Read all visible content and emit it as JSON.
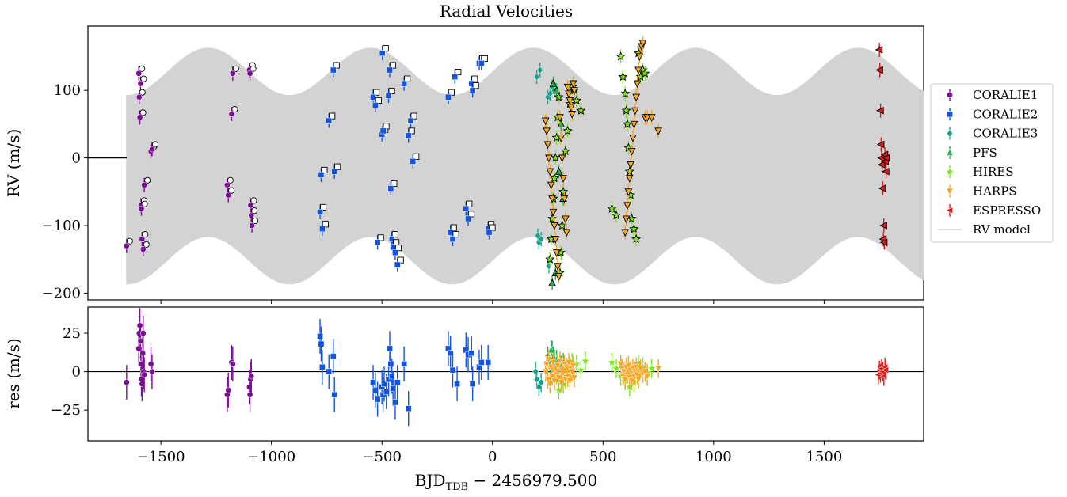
{
  "chart_data": [
    {
      "type": "scatter",
      "panel": "top",
      "title": "Radial Velocities",
      "ylabel": "RV (m/s)",
      "xlim": [
        -1830,
        1950
      ],
      "ylim": [
        -210,
        195
      ],
      "yticks": [
        100,
        0,
        -100,
        -200
      ],
      "ytick_labels": [
        "100",
        "0",
        "−100",
        "−200"
      ],
      "model": {
        "name": "RV model",
        "color": "#d3d3d3",
        "x_start": -1655,
        "x_end": 1950,
        "offset": -12,
        "slow_amplitude": 35,
        "slow_period": 735,
        "fast_amplitude": 140
      },
      "series": [
        {
          "name": "CORALIE1",
          "color": "#7b0c95",
          "marker": "circle",
          "x": [
            -1655,
            -1600,
            -1598,
            -1595,
            -1590,
            -1585,
            -1580,
            -1575,
            -1592,
            -1588,
            -1545,
            -1540,
            -1200,
            -1195,
            -1180,
            -1175,
            -1100,
            -1097,
            -1094,
            -1091,
            -1088
          ],
          "y": [
            -130,
            125,
            90,
            60,
            -70,
            -120,
            -135,
            -40,
            110,
            -75,
            10,
            13,
            -40,
            -55,
            65,
            125,
            130,
            125,
            -70,
            -85,
            -100
          ]
        },
        {
          "name": "CORALIE2",
          "color": "#1154e0",
          "marker": "square",
          "x": [
            -780,
            -775,
            -770,
            -740,
            -720,
            -715,
            -540,
            -530,
            -520,
            -500,
            -498,
            -495,
            -470,
            -465,
            -460,
            -455,
            -450,
            -440,
            -430,
            -400,
            -380,
            -370,
            -360,
            -200,
            -190,
            -180,
            -170,
            -120,
            -110,
            -95,
            -90,
            -60,
            -50,
            -20,
            -15
          ],
          "y": [
            -80,
            -25,
            -105,
            55,
            130,
            -20,
            90,
            78,
            -125,
            35,
            155,
            40,
            92,
            130,
            -45,
            -120,
            -132,
            -140,
            -158,
            110,
            33,
            55,
            -5,
            90,
            -110,
            -120,
            120,
            -75,
            -90,
            110,
            100,
            140,
            140,
            -105,
            -110
          ]
        },
        {
          "name": "CORALIE3",
          "color": "#16a08c",
          "marker": "diamond",
          "x": [
            200,
            205,
            210,
            215,
            220,
            250,
            255,
            260,
            270,
            280
          ],
          "y": [
            120,
            -115,
            -125,
            130,
            -120,
            90,
            -160,
            95,
            105,
            100
          ]
        },
        {
          "name": "PFS",
          "color": "#22b04a",
          "marker": "triangle-up",
          "x": [
            270,
            275,
            285,
            290,
            300,
            310,
            320
          ],
          "y": [
            -185,
            110,
            -170,
            100,
            -20,
            50,
            -60
          ]
        },
        {
          "name": "HIRES",
          "color": "#7fe51c",
          "marker": "star",
          "x": [
            260,
            265,
            270,
            275,
            280,
            285,
            290,
            295,
            300,
            305,
            310,
            315,
            320,
            330,
            340,
            350,
            360,
            370,
            380,
            400,
            540,
            560,
            580,
            590,
            600,
            605,
            610,
            615,
            620,
            625,
            630,
            640,
            650,
            660,
            670,
            680,
            690
          ],
          "y": [
            -150,
            -120,
            -90,
            -60,
            -30,
            0,
            30,
            60,
            90,
            -170,
            -140,
            -100,
            -50,
            10,
            40,
            80,
            105,
            100,
            85,
            70,
            -75,
            -85,
            150,
            120,
            95,
            70,
            50,
            15,
            -20,
            -55,
            -90,
            -105,
            -120,
            155,
            120,
            130,
            125
          ]
        },
        {
          "name": "HARPS",
          "color": "#f5a623",
          "marker": "triangle-down",
          "x": [
            240,
            245,
            250,
            255,
            260,
            265,
            270,
            275,
            280,
            285,
            290,
            295,
            300,
            305,
            310,
            315,
            320,
            325,
            330,
            335,
            340,
            345,
            350,
            355,
            360,
            365,
            370,
            600,
            605,
            610,
            615,
            620,
            625,
            630,
            635,
            640,
            645,
            650,
            655,
            660,
            665,
            670,
            675,
            680,
            690,
            700,
            720,
            750
          ],
          "y": [
            55,
            40,
            20,
            0,
            -20,
            -40,
            -60,
            -80,
            -100,
            -120,
            -140,
            -160,
            -175,
            60,
            30,
            0,
            -30,
            -60,
            -90,
            -110,
            105,
            95,
            85,
            75,
            65,
            110,
            100,
            -110,
            -90,
            -70,
            -50,
            -30,
            -10,
            10,
            30,
            50,
            70,
            90,
            110,
            130,
            150,
            160,
            165,
            170,
            60,
            60,
            60,
            40
          ]
        },
        {
          "name": "ESPRESSO",
          "color": "#d62020",
          "marker": "triangle-left",
          "x": [
            1750,
            1752,
            1755,
            1758,
            1760,
            1762,
            1765,
            1768,
            1770,
            1772,
            1775,
            1778,
            1780,
            1782
          ],
          "y": [
            160,
            130,
            70,
            20,
            0,
            -10,
            -45,
            -120,
            -100,
            -125,
            5,
            -5,
            -20,
            0
          ]
        }
      ]
    },
    {
      "type": "scatter",
      "panel": "bottom",
      "ylabel": "res (m/s)",
      "xlabel_main": "BJD",
      "xlabel_sub": "TDB",
      "xlabel_rest": " − 2456979.500",
      "xlim": [
        -1830,
        1950
      ],
      "ylim": [
        -45,
        42
      ],
      "yticks": [
        25,
        0,
        -25
      ],
      "ytick_labels": [
        "25",
        "0",
        "−25"
      ],
      "xticks": [
        -1500,
        -1000,
        -500,
        0,
        500,
        1000,
        1500
      ],
      "xtick_labels": [
        "−1500",
        "−1000",
        "−500",
        "0",
        "500",
        "1000",
        "1500"
      ],
      "series": [
        {
          "name": "CORALIE1",
          "color": "#7b0c95",
          "marker": "circle",
          "x": [
            -1655,
            -1600,
            -1598,
            -1595,
            -1592,
            -1590,
            -1588,
            -1585,
            -1582,
            -1580,
            -1578,
            -1575,
            -1545,
            -1540,
            -1200,
            -1195,
            -1180,
            -1175,
            -1100,
            -1097,
            -1094,
            -1091
          ],
          "y": [
            -7,
            15,
            25,
            30,
            20,
            5,
            -5,
            -8,
            12,
            25,
            0,
            -2,
            5,
            0,
            -15,
            -12,
            6,
            5,
            -10,
            -15,
            -5,
            -3
          ]
        },
        {
          "name": "CORALIE2",
          "color": "#1154e0",
          "marker": "square",
          "x": [
            -780,
            -775,
            -770,
            -740,
            -720,
            -715,
            -540,
            -530,
            -520,
            -500,
            -495,
            -490,
            -480,
            -470,
            -465,
            -460,
            -455,
            -450,
            -440,
            -430,
            -400,
            -380,
            -200,
            -190,
            -180,
            -160,
            -120,
            -110,
            -95,
            -90,
            -60,
            -50,
            -20
          ],
          "y": [
            23,
            18,
            3,
            0,
            10,
            -15,
            -7,
            -12,
            -18,
            -10,
            -15,
            -8,
            -13,
            -5,
            15,
            5,
            -3,
            -11,
            -20,
            -7,
            5,
            -24,
            15,
            12,
            1,
            -8,
            14,
            11,
            12,
            -8,
            3,
            6,
            6
          ]
        },
        {
          "name": "CORALIE3",
          "color": "#16a08c",
          "marker": "diamond",
          "x": [
            195,
            200,
            210,
            220,
            245,
            250,
            260,
            270,
            280
          ],
          "y": [
            0,
            -5,
            -10,
            -7,
            5,
            10,
            4,
            14,
            8
          ]
        },
        {
          "name": "PFS",
          "color": "#22b04a",
          "marker": "triangle-up",
          "x": [
            265,
            275,
            290,
            300,
            310,
            320,
            330
          ],
          "y": [
            14,
            10,
            8,
            -5,
            4,
            6,
            -3
          ]
        },
        {
          "name": "HIRES",
          "color": "#7fe51c",
          "marker": "star",
          "x": [
            300,
            320,
            340,
            360,
            380,
            400,
            420,
            540,
            560,
            580,
            600,
            620,
            640,
            660,
            680,
            700,
            720
          ],
          "y": [
            -12,
            -8,
            -4,
            6,
            5,
            1,
            7,
            6,
            2,
            -3,
            -6,
            -10,
            -7,
            5,
            3,
            -1,
            2
          ]
        },
        {
          "name": "HARPS",
          "color": "#f5a623",
          "marker": "triangle-down",
          "x": [
            240,
            245,
            250,
            255,
            260,
            265,
            270,
            275,
            280,
            285,
            290,
            295,
            300,
            305,
            310,
            315,
            320,
            325,
            330,
            335,
            340,
            345,
            350,
            355,
            360,
            365,
            370,
            580,
            585,
            590,
            595,
            600,
            605,
            610,
            615,
            620,
            625,
            630,
            635,
            640,
            645,
            650,
            655,
            660,
            665,
            670,
            680,
            690,
            700,
            750
          ],
          "y": [
            0,
            5,
            -5,
            8,
            -8,
            3,
            -3,
            6,
            -6,
            2,
            -2,
            4,
            -4,
            7,
            -7,
            1,
            -1,
            5,
            -5,
            3,
            -3,
            6,
            -6,
            2,
            0,
            4,
            -4,
            5,
            2,
            -3,
            0,
            -5,
            3,
            -2,
            4,
            -4,
            1,
            -6,
            2,
            -3,
            0,
            3,
            -2,
            -5,
            1,
            2,
            -1,
            0,
            -3,
            2
          ]
        },
        {
          "name": "ESPRESSO",
          "color": "#d62020",
          "marker": "triangle-left",
          "x": [
            1745,
            1750,
            1755,
            1760,
            1765,
            1770,
            1775,
            1778
          ],
          "y": [
            -2,
            1,
            -1,
            2,
            0,
            -3,
            3,
            1
          ]
        }
      ]
    }
  ],
  "legend": {
    "placement": "right",
    "items": [
      {
        "label": "CORALIE1",
        "color": "#7b0c95",
        "marker": "circle"
      },
      {
        "label": "CORALIE2",
        "color": "#1154e0",
        "marker": "square"
      },
      {
        "label": "CORALIE3",
        "color": "#16a08c",
        "marker": "diamond"
      },
      {
        "label": "PFS",
        "color": "#22b04a",
        "marker": "triangle-up"
      },
      {
        "label": "HIRES",
        "color": "#7fe51c",
        "marker": "star"
      },
      {
        "label": "HARPS",
        "color": "#f5a623",
        "marker": "triangle-down"
      },
      {
        "label": "ESPRESSO",
        "color": "#d62020",
        "marker": "triangle-left"
      },
      {
        "label": "RV model",
        "color": "#d3d3d3",
        "marker": "line"
      }
    ]
  }
}
